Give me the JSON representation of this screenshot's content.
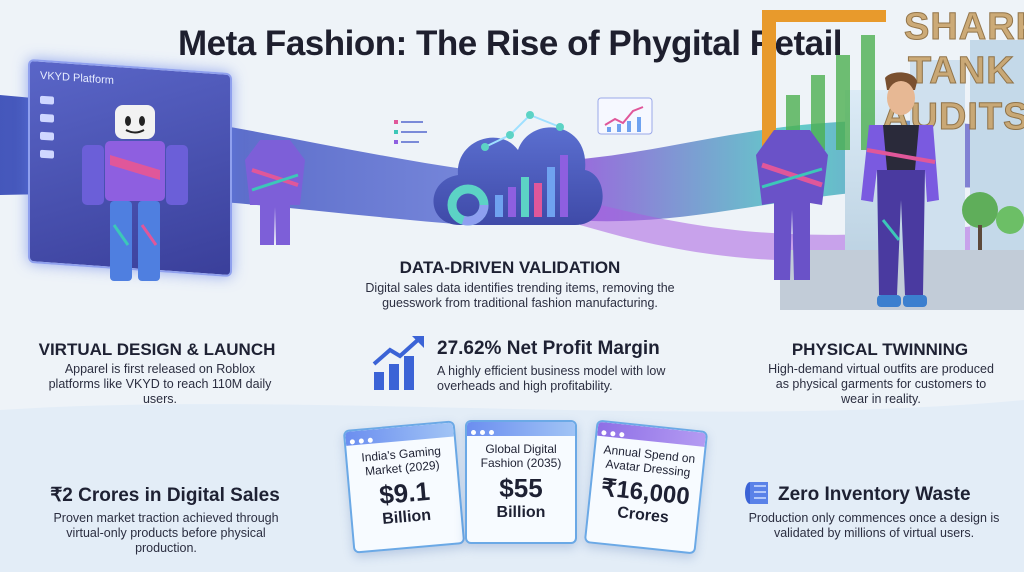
{
  "title": "Meta Fashion: The Rise of Phygital Retail",
  "logo": {
    "line1": "SHARK",
    "line2": "TANK",
    "line3": "AUDITS"
  },
  "platform_window": {
    "label": "VKYD Platform"
  },
  "sections": {
    "virtual_design": {
      "heading": "VIRTUAL DESIGN & LAUNCH",
      "body": "Apparel is first released on Roblox platforms like VKYD to reach 110M daily users."
    },
    "data_validation": {
      "heading": "DATA-DRIVEN VALIDATION",
      "body": "Digital sales data identifies trending items, removing the guesswork from traditional fashion manufacturing."
    },
    "physical_twinning": {
      "heading": "PHYSICAL TWINNING",
      "body": "High-demand virtual outfits are produced as physical garments for customers to wear in reality."
    },
    "net_profit": {
      "heading": "27.62% Net Profit Margin",
      "body": "A highly efficient business model with low overheads and high profitability."
    },
    "digital_sales": {
      "heading": "₹2 Crores in Digital Sales",
      "body": "Proven market traction achieved through virtual-only products before physical production."
    },
    "zero_waste": {
      "heading": "Zero Inventory Waste",
      "body": "Production only commences once a design is validated by millions of virtual users."
    }
  },
  "cards": [
    {
      "label": "India's Gaming Market (2029)",
      "value": "$9.1",
      "unit": "Billion"
    },
    {
      "label": "Global Digital Fashion (2035)",
      "value": "$55",
      "unit": "Billion"
    },
    {
      "label": "Annual Spend on Avatar Dressing",
      "value": "₹16,000",
      "unit": "Crores"
    }
  ],
  "colors": {
    "accent_blue": "#3b63d6",
    "accent_teal": "#3cc7b8",
    "accent_purple": "#8e5fe0",
    "accent_pink": "#e0579a",
    "logo_gold": "#c9a36a",
    "logo_green": "#4caf50"
  },
  "icons": [
    "growth-chart-icon",
    "fabric-roll-icon",
    "cloud-analytics-icon",
    "line-chart-icon"
  ]
}
